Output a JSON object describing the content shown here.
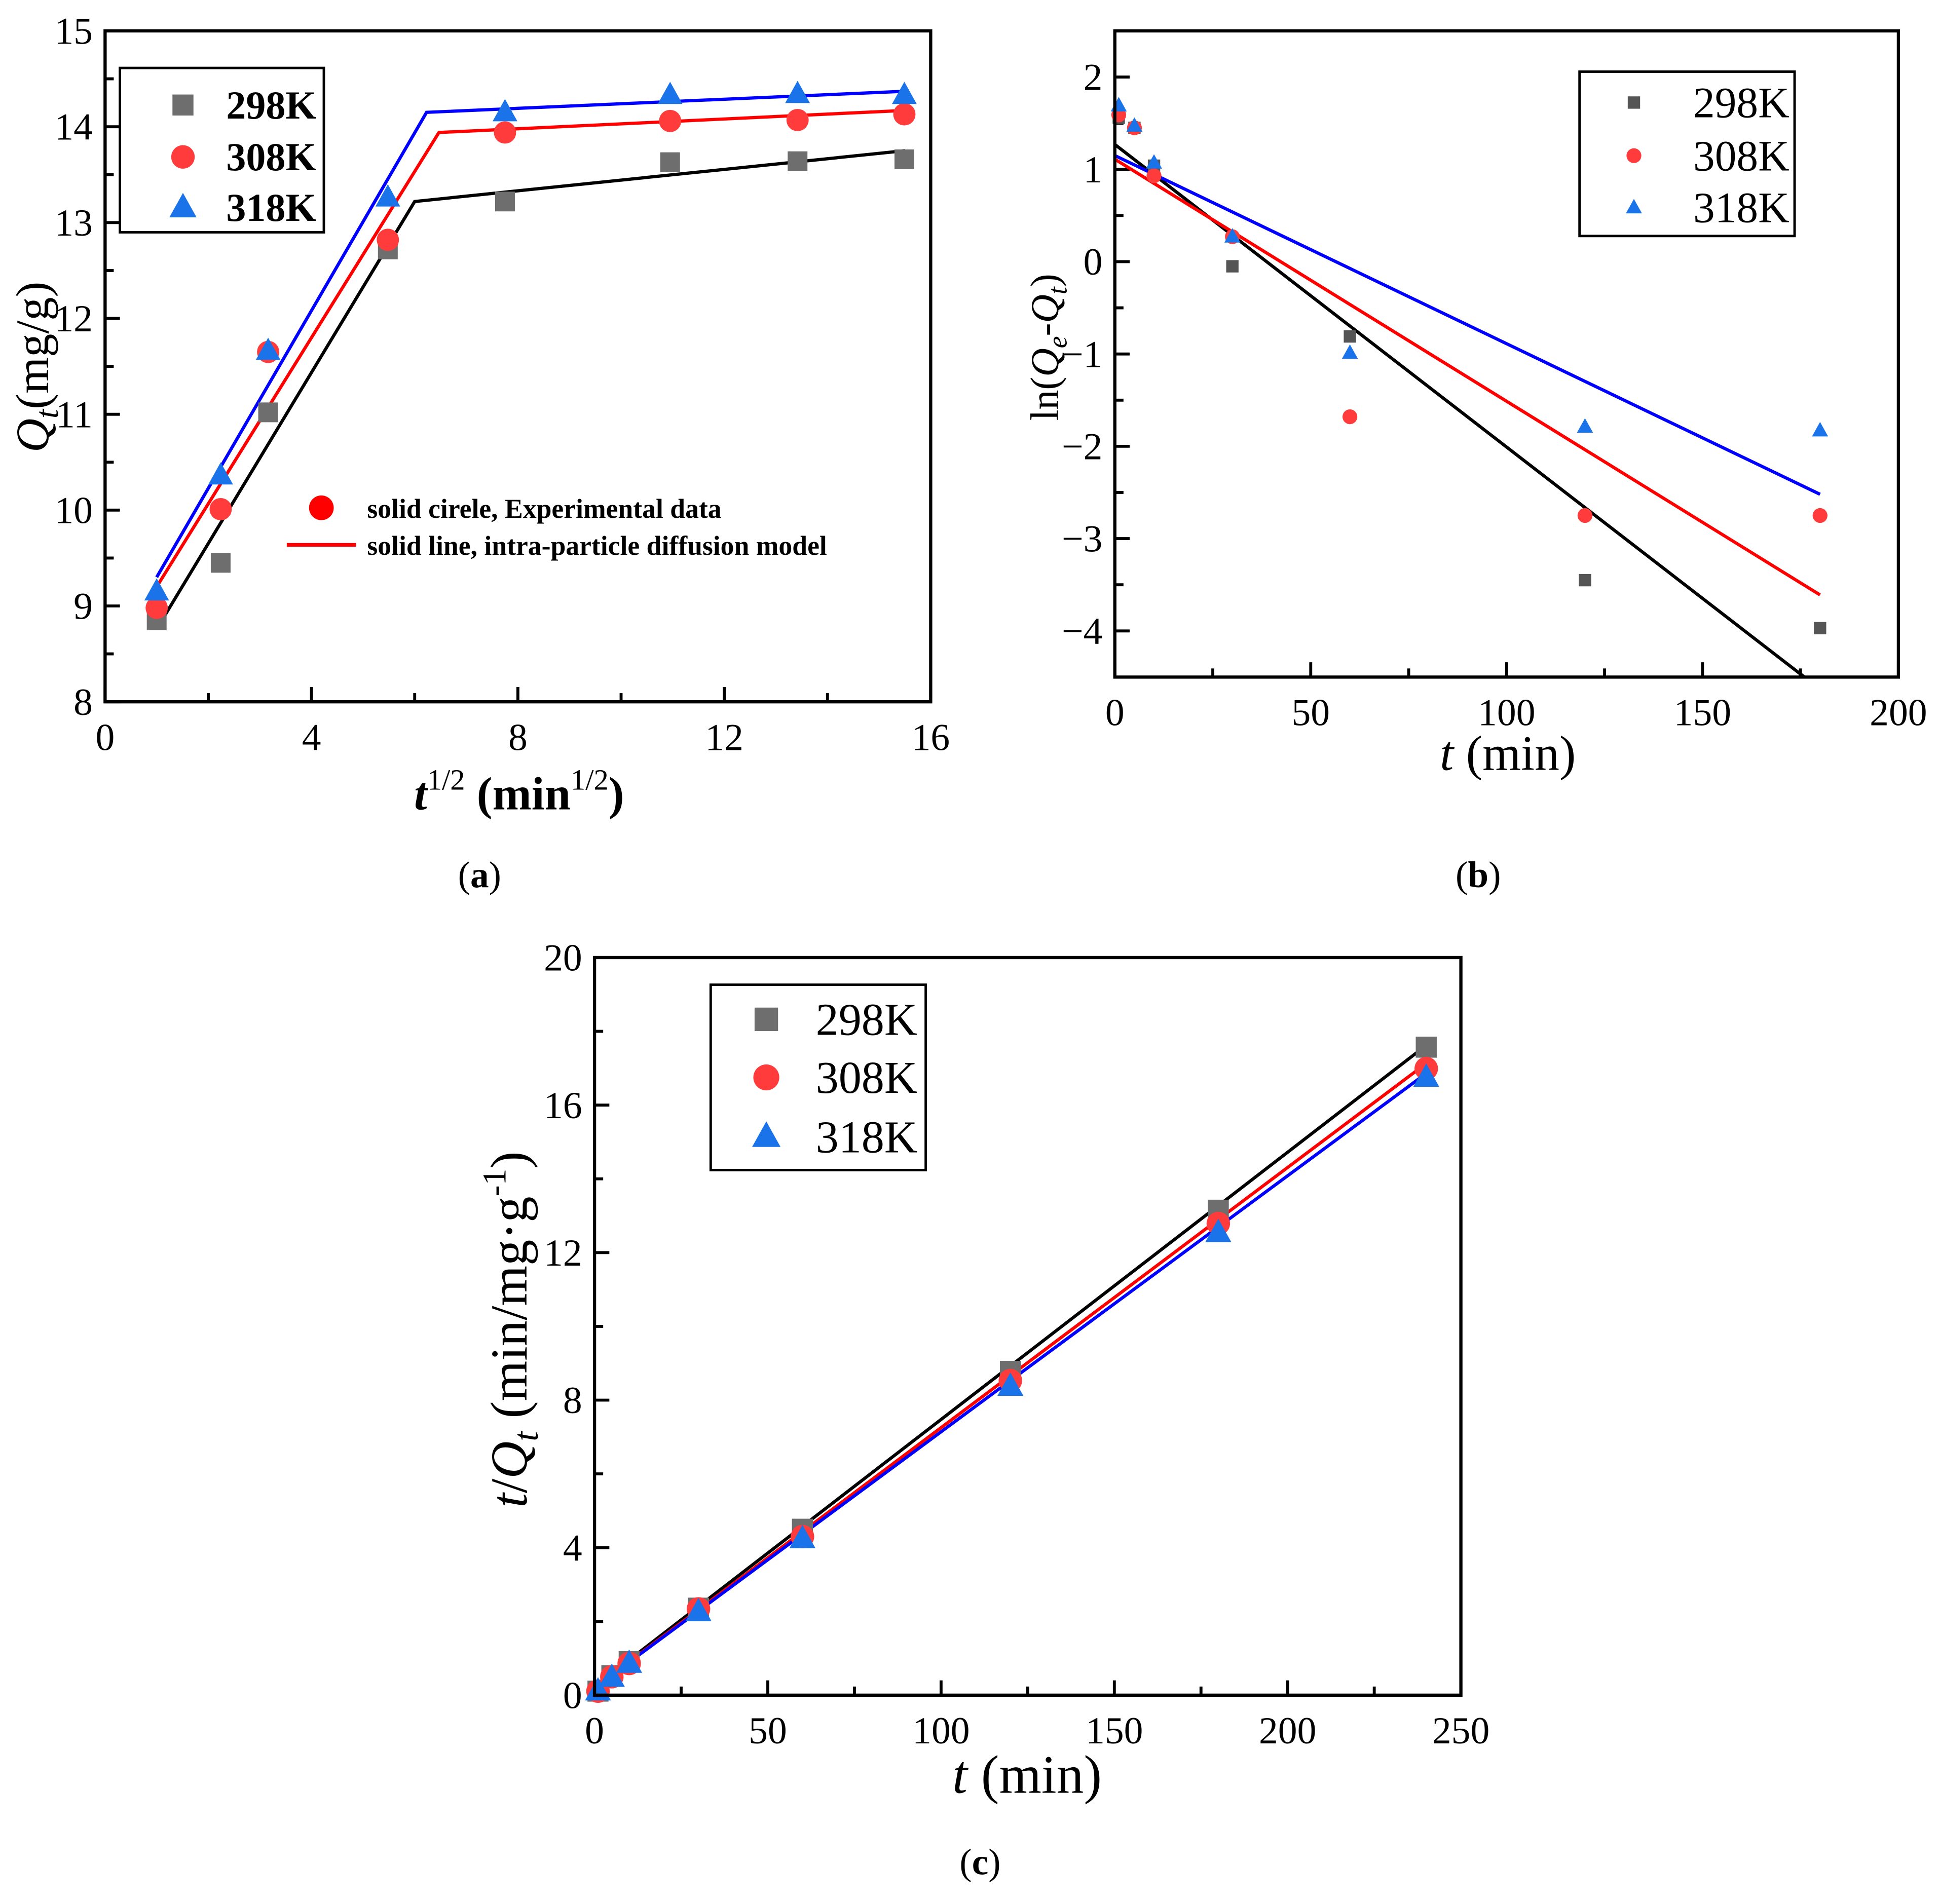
{
  "chart_data": [
    {
      "type": "scatter",
      "caption": [
        "(",
        "a",
        ")"
      ],
      "xlabel": [
        "t",
        "1/2",
        " (min",
        "1/2",
        ")"
      ],
      "ylabel": [
        "Q",
        "t",
        "(mg/g)"
      ],
      "xlim": [
        0,
        16
      ],
      "ylim": [
        8,
        15
      ],
      "xticks": [
        0,
        4,
        8,
        12,
        16
      ],
      "xtick_labels": [
        "0",
        "4",
        "8",
        "12",
        "16"
      ],
      "yticks": [
        8,
        9,
        10,
        11,
        12,
        13,
        14,
        15
      ],
      "ytick_labels": [
        "8",
        "9",
        "10",
        "11",
        "12",
        "13",
        "14",
        "15"
      ],
      "legend_position": "top-left",
      "x": [
        1,
        2.24,
        3.16,
        5.48,
        7.75,
        10.95,
        13.42,
        15.49
      ],
      "series": [
        {
          "name": "298K",
          "marker": "square",
          "color": "#6e6e6e",
          "line_color": "#000000",
          "values": [
            8.85,
            9.45,
            11.02,
            12.72,
            13.22,
            13.63,
            13.64,
            13.66
          ],
          "fit": [
            [
              1,
              8.76
            ],
            [
              6.0,
              13.22
            ],
            [
              15.5,
              13.75
            ]
          ]
        },
        {
          "name": "308K",
          "marker": "circle",
          "color": "#ff3b3b",
          "line_color": "#ff0000",
          "values": [
            8.98,
            10.01,
            11.65,
            12.82,
            13.94,
            14.06,
            14.07,
            14.13
          ],
          "fit": [
            [
              1,
              9.2
            ],
            [
              6.47,
              13.94
            ],
            [
              15.5,
              14.17
            ]
          ]
        },
        {
          "name": "318K",
          "marker": "triangle",
          "color": "#1a73e8",
          "line_color": "#0000ff",
          "values": [
            9.15,
            10.36,
            11.66,
            13.26,
            14.15,
            14.33,
            14.34,
            14.33
          ],
          "fit": [
            [
              1,
              9.3
            ],
            [
              6.23,
              14.15
            ],
            [
              15.5,
              14.37
            ]
          ]
        }
      ],
      "annotations": [
        "solid cirele, Experimental data",
        "solid line, intra-particle diffusion model"
      ],
      "annotation_color": "#ff0000"
    },
    {
      "type": "scatter",
      "caption": [
        "(",
        "b",
        ")"
      ],
      "xlabel": [
        "t",
        " (min)"
      ],
      "ylabel": [
        "ln(",
        "Q",
        "e",
        "-",
        "Q",
        "t",
        ")"
      ],
      "xlim": [
        0,
        200
      ],
      "ylim": [
        -4.5,
        2.5
      ],
      "xticks": [
        0,
        50,
        100,
        150,
        200
      ],
      "xtick_labels": [
        "0",
        "50",
        "100",
        "150",
        "200"
      ],
      "yticks": [
        -4,
        -3,
        -2,
        -1,
        0,
        1,
        2
      ],
      "ytick_labels": [
        "−4",
        "−3",
        "−2",
        "−1",
        "0",
        "1",
        "2"
      ],
      "legend_position": "top-right",
      "x": [
        1,
        5,
        10,
        30,
        60,
        120,
        180
      ],
      "series": [
        {
          "name": "298K",
          "marker": "square",
          "color": "#555555",
          "line_color": "#000000",
          "values": [
            1.56,
            1.45,
            1.04,
            -0.05,
            -0.81,
            -3.45,
            -3.97
          ],
          "fit": [
            [
              0,
              1.27
            ],
            [
              176,
              -4.5
            ]
          ]
        },
        {
          "name": "308K",
          "marker": "circle",
          "color": "#ff3b3b",
          "line_color": "#ff0000",
          "values": [
            1.59,
            1.45,
            0.93,
            0.27,
            -1.68,
            -2.75,
            -2.75
          ],
          "fit": [
            [
              0,
              1.11
            ],
            [
              180,
              -3.61
            ]
          ]
        },
        {
          "name": "318K",
          "marker": "triangle",
          "color": "#1a73e8",
          "line_color": "#0000ff",
          "values": [
            1.69,
            1.47,
            1.07,
            0.27,
            -0.99,
            -1.79,
            -1.83
          ],
          "fit": [
            [
              0,
              1.15
            ],
            [
              180,
              -2.52
            ]
          ]
        }
      ]
    },
    {
      "type": "scatter",
      "caption": [
        "(",
        "c",
        ")"
      ],
      "xlabel": [
        "t",
        " (min)"
      ],
      "ylabel": [
        "t",
        "/",
        "Q",
        "t",
        " (min/mg·g",
        "-1",
        ")"
      ],
      "xlim": [
        0,
        250
      ],
      "ylim": [
        0,
        20
      ],
      "xticks": [
        0,
        50,
        100,
        150,
        200,
        250
      ],
      "xtick_labels": [
        "0",
        "50",
        "100",
        "150",
        "200",
        "250"
      ],
      "yticks": [
        0,
        4,
        8,
        12,
        16,
        20
      ],
      "ytick_labels": [
        "0",
        "4",
        "8",
        "12",
        "16",
        "20"
      ],
      "legend_position": "top-left",
      "x": [
        1,
        5,
        10,
        30,
        60,
        120,
        180,
        240
      ],
      "series": [
        {
          "name": "298K",
          "marker": "square",
          "color": "#6e6e6e",
          "line_color": "#000000",
          "values": [
            0.11,
            0.53,
            0.91,
            2.36,
            4.5,
            8.78,
            13.15,
            17.57
          ],
          "fit": [
            [
              0,
              0.23
            ],
            [
              240,
              17.62
            ]
          ]
        },
        {
          "name": "308K",
          "marker": "circle",
          "color": "#ff3b3b",
          "line_color": "#ff0000",
          "values": [
            0.11,
            0.5,
            0.86,
            2.34,
            4.3,
            8.53,
            12.79,
            16.99
          ],
          "fit": [
            [
              0,
              0.2
            ],
            [
              240,
              17.13
            ]
          ]
        },
        {
          "name": "318K",
          "marker": "triangle",
          "color": "#1a73e8",
          "line_color": "#0000ff",
          "values": [
            0.11,
            0.48,
            0.86,
            2.26,
            4.24,
            8.37,
            12.54,
            16.75
          ],
          "fit": [
            [
              0,
              0.2
            ],
            [
              240,
              16.86
            ]
          ]
        }
      ]
    }
  ]
}
